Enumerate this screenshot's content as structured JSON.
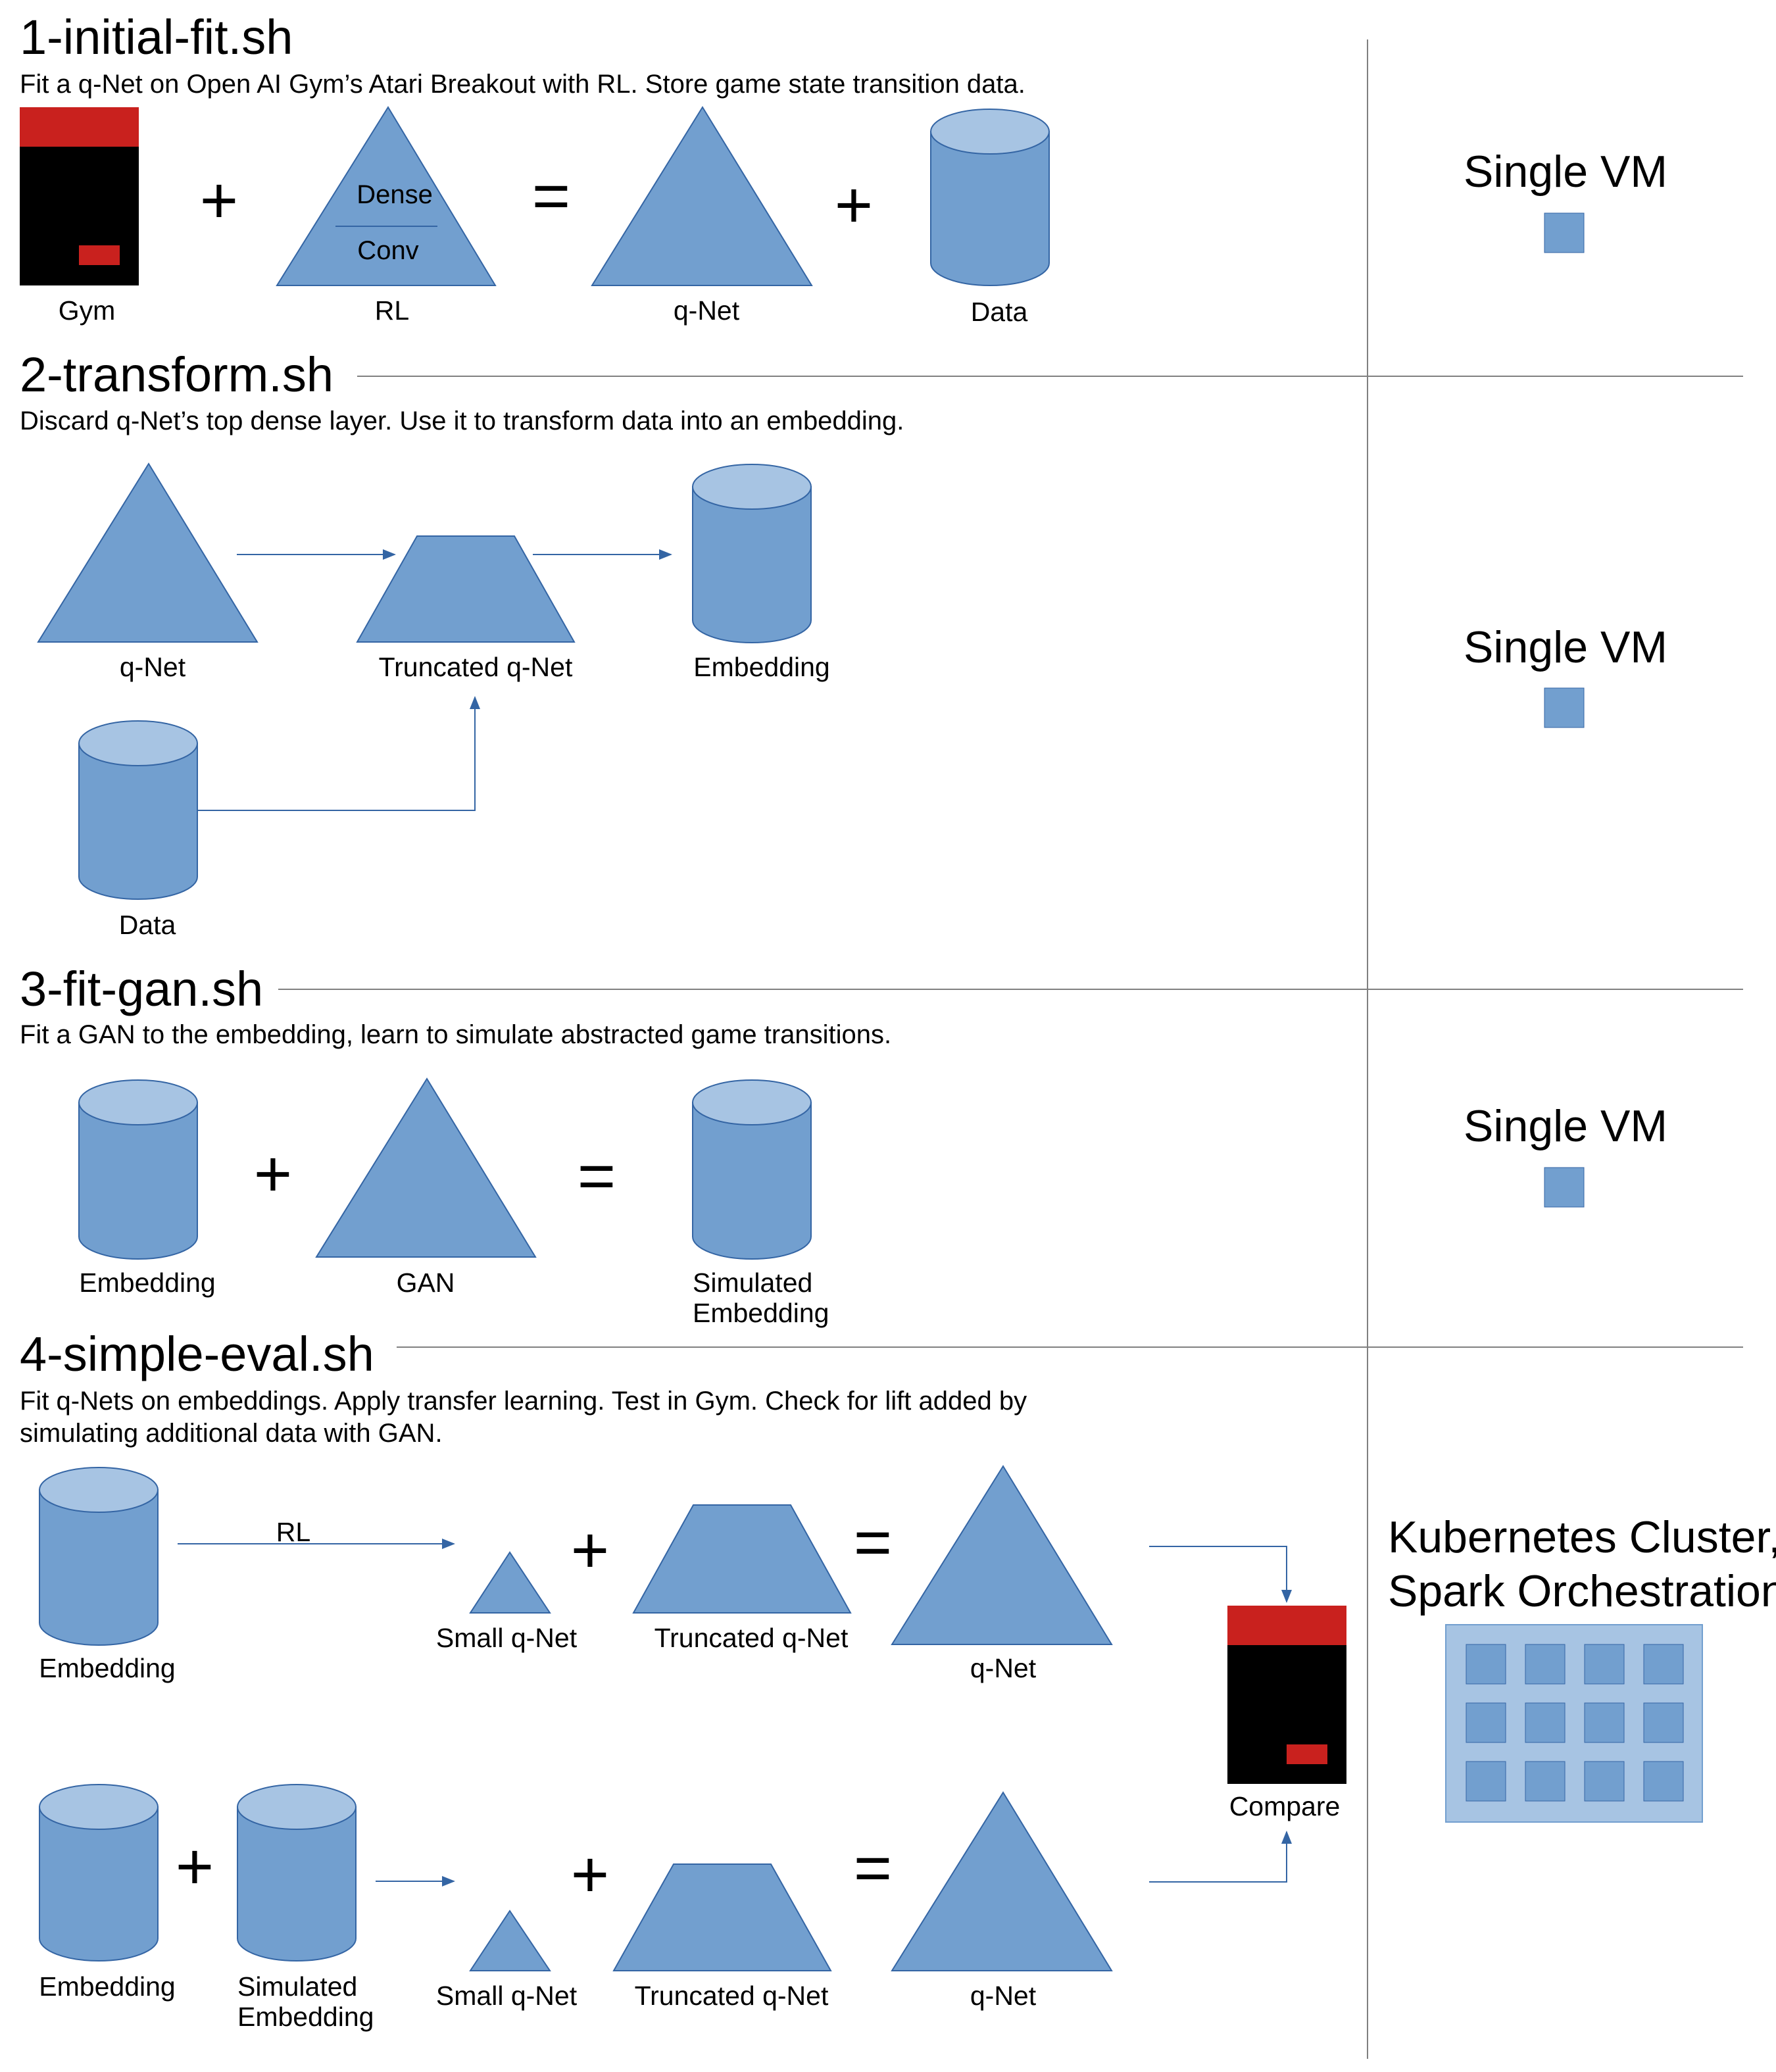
{
  "colors": {
    "shape": "#729fcf",
    "shape_top": "#a7c4e3",
    "shape_stroke": "#3465a4",
    "arrow": "#3465a4",
    "gym_red": "#c9211e",
    "gym_black": "#000000",
    "divider": "#808080"
  },
  "section1": {
    "title": "1-initial-fit.sh",
    "description": "Fit a q-Net on Open AI Gym’s Atari Breakout with RL. Store game state transition data.",
    "gym_label": "Gym",
    "rl_label": "RL",
    "rl_top_layer": "Dense",
    "rl_bottom_layer": "Conv",
    "qnet_label": "q-Net",
    "data_label": "Data",
    "plus": "+",
    "equals": "=",
    "infra_label": "Single VM"
  },
  "section2": {
    "title": "2-transform.sh",
    "description": "Discard q-Net’s top dense layer. Use it to transform data into an embedding.",
    "qnet_label": "q-Net",
    "truncated_label": "Truncated q-Net",
    "embedding_label": "Embedding",
    "data_label": "Data",
    "infra_label": "Single VM"
  },
  "section3": {
    "title": "3-fit-gan.sh",
    "description": "Fit a GAN to the embedding, learn to simulate abstracted game transitions.",
    "embedding_label": "Embedding",
    "gan_label": "GAN",
    "simulated_line1": "Simulated",
    "simulated_line2": "Embedding",
    "plus": "+",
    "equals": "=",
    "infra_label": "Single VM"
  },
  "section4": {
    "title": "4-simple-eval.sh",
    "description_line1": "Fit q-Nets on embeddings. Apply transfer learning. Test in Gym. Check for lift added by",
    "description_line2": "simulating additional data with GAN.",
    "row1": {
      "embedding_label": "Embedding",
      "arrow_label": "RL",
      "small_qnet_label": "Small q-Net",
      "truncated_label": "Truncated q-Net",
      "qnet_label": "q-Net"
    },
    "row2": {
      "embedding_label": "Embedding",
      "simulated_line1": "Simulated",
      "simulated_line2": "Embedding",
      "small_qnet_label": "Small q-Net",
      "truncated_label": "Truncated q-Net",
      "qnet_label": "q-Net"
    },
    "compare_label": "Compare",
    "plus": "+",
    "equals": "=",
    "infra_line1": "Kubernetes Cluster,",
    "infra_line2": "Spark Orchestration",
    "cluster_nodes": 12
  }
}
